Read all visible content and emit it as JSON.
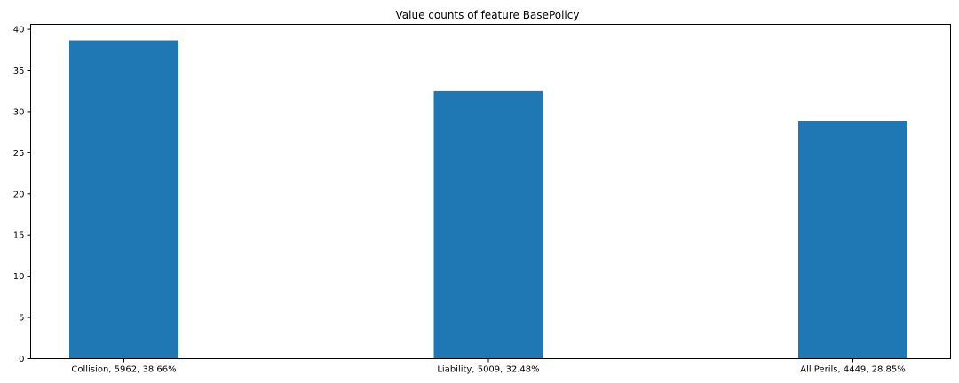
{
  "chart_data": {
    "type": "bar",
    "title": "Value counts of feature BasePolicy",
    "xlabel": "",
    "ylabel": "",
    "categories": [
      "Collision, 5962, 38.66%",
      "Liability, 5009, 32.48%",
      "All Perils, 4449, 28.85%"
    ],
    "values": [
      38.66,
      32.48,
      28.85
    ],
    "ylim": [
      0,
      40.6
    ],
    "yticks": [
      0,
      5,
      10,
      15,
      20,
      25,
      30,
      35,
      40
    ],
    "grid": false,
    "bar_color": "#1f77b4"
  }
}
